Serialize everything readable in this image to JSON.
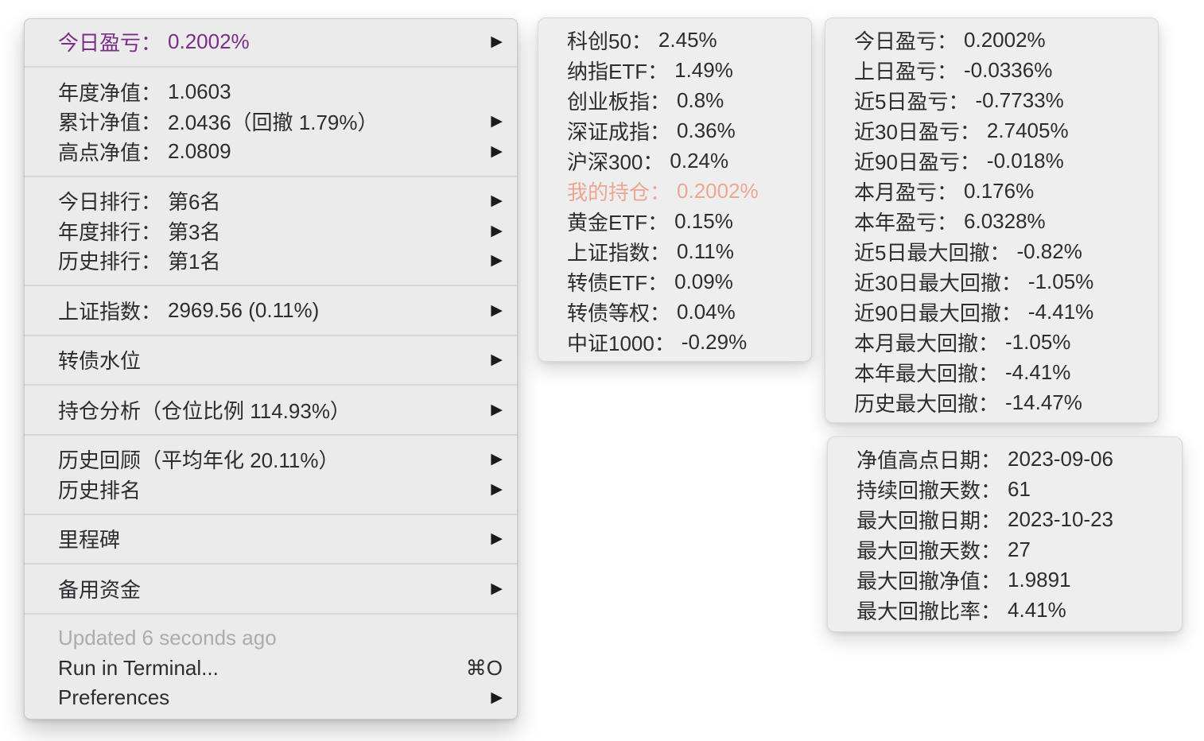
{
  "colors": {
    "page_background": "#ffffff",
    "menu_background": "#ebebec",
    "floating_panel_background": "#efeeef",
    "text": "#2d2d2f",
    "accent_purple": "#7b2d87",
    "accent_salmon": "#eba791",
    "muted_gray": "#acabad",
    "separator": "#d7d6d8"
  },
  "icons": {
    "submenu_arrow": "▶"
  },
  "menu": {
    "items": [
      {
        "label": "今日盈亏：",
        "value": "0.2002%"
      },
      {
        "label": "年度净值：",
        "value": "1.0603"
      },
      {
        "label": "累计净值：",
        "value": "2.0436（回撤 1.79%）"
      },
      {
        "label": "高点净值：",
        "value": "2.0809"
      },
      {
        "label": "今日排行：",
        "value": "第6名"
      },
      {
        "label": "年度排行：",
        "value": "第3名"
      },
      {
        "label": "历史排行：",
        "value": "第1名"
      },
      {
        "label": "上证指数：",
        "value": "2969.56 (0.11%)"
      },
      {
        "label": "转债水位"
      },
      {
        "label": "持仓分析（仓位比例 114.93%）"
      },
      {
        "label": "历史回顾（平均年化 20.11%）"
      },
      {
        "label": "历史排名"
      },
      {
        "label": "里程碑"
      },
      {
        "label": "备用资金"
      },
      {
        "label": "Updated 6 seconds ago"
      },
      {
        "label": "Run in Terminal...",
        "shortcut": "⌘O"
      },
      {
        "label": "Preferences"
      }
    ]
  },
  "index_panel": {
    "rows": [
      {
        "label": "科创50：",
        "value": "2.45%"
      },
      {
        "label": "纳指ETF：",
        "value": "1.49%"
      },
      {
        "label": "创业板指：",
        "value": "0.8%"
      },
      {
        "label": "深证成指：",
        "value": "0.36%"
      },
      {
        "label": "沪深300：",
        "value": "0.24%"
      },
      {
        "label": "我的持仓：",
        "value": "0.2002%"
      },
      {
        "label": "黄金ETF：",
        "value": "0.15%"
      },
      {
        "label": "上证指数：",
        "value": "0.11%"
      },
      {
        "label": "转债ETF：",
        "value": "0.09%"
      },
      {
        "label": "转债等权：",
        "value": "0.04%"
      },
      {
        "label": "中证1000：",
        "value": "-0.29%"
      }
    ]
  },
  "pnl_panel": {
    "rows": [
      {
        "label": "今日盈亏：",
        "value": "0.2002%"
      },
      {
        "label": "上日盈亏：",
        "value": "-0.0336%"
      },
      {
        "label": "近5日盈亏：",
        "value": "-0.7733%"
      },
      {
        "label": "近30日盈亏：",
        "value": "2.7405%"
      },
      {
        "label": "近90日盈亏：",
        "value": "-0.018%"
      },
      {
        "label": "本月盈亏：",
        "value": "0.176%"
      },
      {
        "label": "本年盈亏：",
        "value": "6.0328%"
      },
      {
        "label": "近5日最大回撤：",
        "value": "-0.82%"
      },
      {
        "label": "近30日最大回撤：",
        "value": "-1.05%"
      },
      {
        "label": "近90日最大回撤：",
        "value": "-4.41%"
      },
      {
        "label": "本月最大回撤：",
        "value": "-1.05%"
      },
      {
        "label": "本年最大回撤：",
        "value": "-4.41%"
      },
      {
        "label": "历史最大回撤：",
        "value": "-14.47%"
      }
    ]
  },
  "drawdown_panel": {
    "rows": [
      {
        "label": "净值高点日期：",
        "value": "2023-09-06"
      },
      {
        "label": "持续回撤天数：",
        "value": "61"
      },
      {
        "label": "最大回撤日期：",
        "value": "2023-10-23"
      },
      {
        "label": "最大回撤天数：",
        "value": "27"
      },
      {
        "label": "最大回撤净值：",
        "value": "1.9891"
      },
      {
        "label": "最大回撤比率：",
        "value": "4.41%"
      }
    ]
  }
}
